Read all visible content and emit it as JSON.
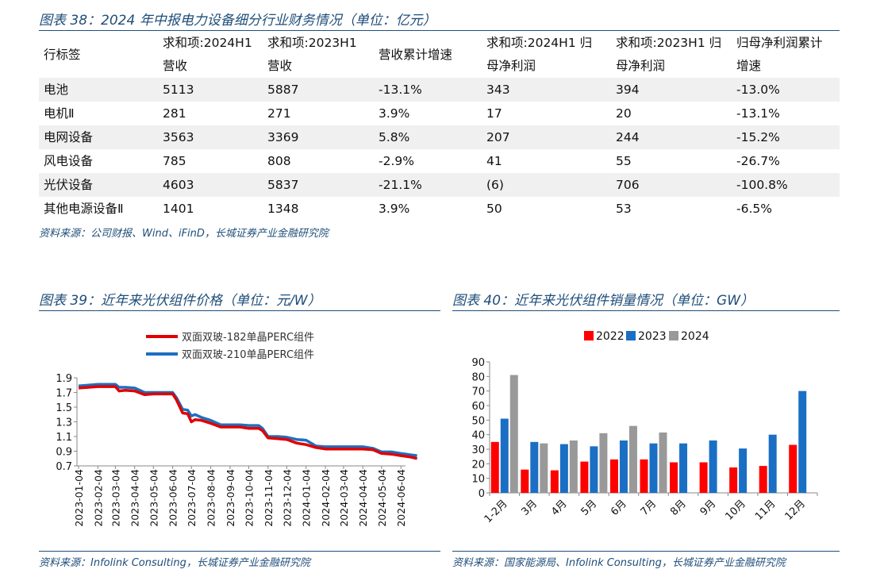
{
  "table_section": {
    "caption": "图表 38：2024 年中报电力设备细分行业财务情况（单位：亿元）",
    "headers": [
      [
        "行标签"
      ],
      [
        "求和项:2024H1",
        "营收"
      ],
      [
        "求和项:2023H1",
        "营收"
      ],
      [
        "营收累计增速"
      ],
      [
        "求和项:2024H1 归",
        "母净利润"
      ],
      [
        "求和项:2023H1 归",
        "母净利润"
      ],
      [
        "归母净利润累计",
        "增速"
      ]
    ],
    "rows": [
      [
        "电池",
        "5113",
        "5887",
        "-13.1%",
        "343",
        "394",
        "-13.0%"
      ],
      [
        "电机Ⅱ",
        "281",
        "271",
        "3.9%",
        "17",
        "20",
        "-13.1%"
      ],
      [
        "电网设备",
        "3563",
        "3369",
        "5.8%",
        "207",
        "244",
        "-15.2%"
      ],
      [
        "风电设备",
        "785",
        "808",
        "-2.9%",
        "41",
        "55",
        "-26.7%"
      ],
      [
        "光伏设备",
        "4603",
        "5837",
        "-21.1%",
        "(6)",
        "706",
        "-100.8%"
      ],
      [
        "其他电源设备Ⅱ",
        "1401",
        "1348",
        "3.9%",
        "50",
        "53",
        "-6.5%"
      ]
    ],
    "source": "资料来源：公司财报、Wind、iFinD，长城证券产业金融研究院"
  },
  "left_chart_section": {
    "caption": "图表 39：近年来光伏组件价格（单位：元/W）",
    "source": "资料来源：Infolink Consulting，长城证券产业金融研究院"
  },
  "right_chart_section": {
    "caption": "图表 40：近年来光伏组件销量情况（单位：GW）",
    "source": "资料来源：国家能源局、Infolink Consulting，长城证券产业金融研究院"
  },
  "chart_data": [
    {
      "type": "line",
      "title": "",
      "xlabel": "",
      "ylabel": "",
      "ylim": [
        0.7,
        1.9
      ],
      "yticks": [
        "0.7",
        "0.9",
        "1.1",
        "1.3",
        "1.5",
        "1.7",
        "1.9"
      ],
      "x_tick_labels": [
        "2023-01-04",
        "2023-02-04",
        "2023-03-04",
        "2023-04-04",
        "2023-05-04",
        "2023-06-04",
        "2023-07-04",
        "2023-08-04",
        "2023-09-04",
        "2023-10-04",
        "2023-11-04",
        "2023-12-04",
        "2024-01-04",
        "2024-02-04",
        "2024-03-04",
        "2024-04-04",
        "2024-05-04",
        "2024-06-04"
      ],
      "legend_position": "top",
      "grid": false,
      "series": [
        {
          "name": "双面双玻-182单晶PERC组件",
          "color": "#e00000",
          "x": [
            "2023-01-04",
            "2023-01-20",
            "2023-02-04",
            "2023-02-20",
            "2023-03-04",
            "2023-03-10",
            "2023-03-20",
            "2023-04-04",
            "2023-04-20",
            "2023-05-04",
            "2023-05-20",
            "2023-06-04",
            "2023-06-10",
            "2023-06-20",
            "2023-06-28",
            "2023-07-04",
            "2023-07-10",
            "2023-07-20",
            "2023-08-04",
            "2023-08-20",
            "2023-09-04",
            "2023-09-20",
            "2023-10-04",
            "2023-10-20",
            "2023-10-26",
            "2023-11-04",
            "2023-11-20",
            "2023-12-04",
            "2023-12-20",
            "2024-01-04",
            "2024-01-20",
            "2024-02-04",
            "2024-02-20",
            "2024-03-04",
            "2024-03-20",
            "2024-04-04",
            "2024-04-20",
            "2024-05-04",
            "2024-05-20",
            "2024-06-04",
            "2024-06-20",
            "2024-06-30"
          ],
          "values": [
            1.76,
            1.77,
            1.78,
            1.78,
            1.78,
            1.72,
            1.73,
            1.72,
            1.67,
            1.68,
            1.68,
            1.68,
            1.6,
            1.42,
            1.41,
            1.3,
            1.33,
            1.32,
            1.28,
            1.23,
            1.23,
            1.23,
            1.21,
            1.21,
            1.18,
            1.08,
            1.07,
            1.06,
            1.01,
            0.99,
            0.95,
            0.93,
            0.93,
            0.93,
            0.93,
            0.93,
            0.92,
            0.87,
            0.86,
            0.84,
            0.82,
            0.8
          ]
        },
        {
          "name": "双面双玻-210单晶PERC组件",
          "color": "#1f6fbf",
          "x": [
            "2023-01-04",
            "2023-01-20",
            "2023-02-04",
            "2023-02-20",
            "2023-03-04",
            "2023-03-10",
            "2023-03-20",
            "2023-04-04",
            "2023-04-20",
            "2023-05-04",
            "2023-05-20",
            "2023-06-04",
            "2023-06-10",
            "2023-06-20",
            "2023-06-28",
            "2023-07-04",
            "2023-07-10",
            "2023-07-20",
            "2023-08-04",
            "2023-08-20",
            "2023-09-04",
            "2023-09-20",
            "2023-10-04",
            "2023-10-20",
            "2023-10-26",
            "2023-11-04",
            "2023-11-20",
            "2023-12-04",
            "2023-12-20",
            "2024-01-04",
            "2024-01-20",
            "2024-02-04",
            "2024-02-20",
            "2024-03-04",
            "2024-03-20",
            "2024-04-04",
            "2024-04-20",
            "2024-05-04",
            "2024-05-20",
            "2024-06-04",
            "2024-06-20",
            "2024-06-30"
          ],
          "values": [
            1.79,
            1.8,
            1.81,
            1.81,
            1.81,
            1.77,
            1.77,
            1.76,
            1.7,
            1.7,
            1.7,
            1.7,
            1.63,
            1.47,
            1.46,
            1.38,
            1.4,
            1.36,
            1.32,
            1.26,
            1.26,
            1.26,
            1.25,
            1.25,
            1.21,
            1.1,
            1.1,
            1.09,
            1.06,
            1.05,
            0.97,
            0.96,
            0.96,
            0.96,
            0.96,
            0.96,
            0.94,
            0.89,
            0.89,
            0.87,
            0.85,
            0.84
          ]
        }
      ]
    },
    {
      "type": "bar",
      "title": "",
      "xlabel": "",
      "ylabel": "",
      "ylim": [
        0,
        90
      ],
      "yticks": [
        "0",
        "10",
        "20",
        "30",
        "40",
        "50",
        "60",
        "70",
        "80",
        "90"
      ],
      "categories": [
        "1-2月",
        "3月",
        "4月",
        "5月",
        "6月",
        "7月",
        "8月",
        "9月",
        "10月",
        "11月",
        "12月"
      ],
      "legend_position": "top",
      "grid": false,
      "series": [
        {
          "name": "2022",
          "color": "#ff0000",
          "values": [
            35,
            16,
            15.5,
            21.5,
            23,
            23,
            21,
            21,
            17.5,
            18.5,
            33
          ]
        },
        {
          "name": "2023",
          "color": "#1a6fc4",
          "values": [
            51,
            35,
            33.5,
            32,
            36,
            34,
            34,
            36,
            30.5,
            40,
            70
          ]
        },
        {
          "name": "2024",
          "color": "#999999",
          "values": [
            81,
            34,
            36,
            41,
            46,
            41.5,
            null,
            null,
            null,
            null,
            null
          ]
        }
      ]
    }
  ]
}
